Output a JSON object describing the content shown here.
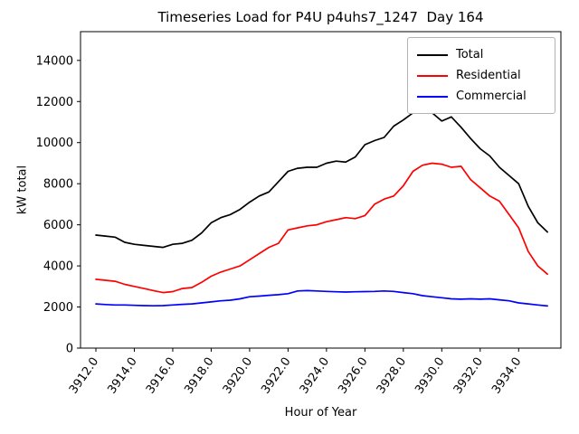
{
  "chart_data": {
    "type": "line",
    "title": "Timeseries Load for P4U p4uhs7_1247  Day 164",
    "xlabel": "Hour of Year",
    "ylabel": "kW total",
    "xlim": [
      3911.2,
      3936.2
    ],
    "ylim": [
      0,
      15400
    ],
    "grid": false,
    "legend_position": "upper right",
    "xtick_values": [
      3912,
      3914,
      3916,
      3918,
      3920,
      3922,
      3924,
      3926,
      3928,
      3930,
      3932,
      3934
    ],
    "xtick_labels": [
      "3912.0",
      "3914.0",
      "3916.0",
      "3918.0",
      "3920.0",
      "3922.0",
      "3924.0",
      "3926.0",
      "3928.0",
      "3930.0",
      "3932.0",
      "3934.0"
    ],
    "ytick_values": [
      0,
      2000,
      4000,
      6000,
      8000,
      10000,
      12000,
      14000
    ],
    "ytick_labels": [
      "0",
      "2000",
      "4000",
      "6000",
      "8000",
      "10000",
      "12000",
      "14000"
    ],
    "x": [
      3912,
      3912.5,
      3913,
      3913.5,
      3914,
      3914.5,
      3915,
      3915.5,
      3916,
      3916.5,
      3917,
      3917.5,
      3918,
      3918.5,
      3919,
      3919.5,
      3920,
      3920.5,
      3921,
      3921.5,
      3922,
      3922.5,
      3923,
      3923.5,
      3924,
      3924.5,
      3925,
      3925.5,
      3926,
      3926.5,
      3927,
      3927.5,
      3928,
      3928.5,
      3929,
      3929.5,
      3930,
      3930.5,
      3931,
      3931.5,
      3932,
      3932.5,
      3933,
      3933.5,
      3934,
      3934.5,
      3935,
      3935.5
    ],
    "series": [
      {
        "name": "Total",
        "color": "#000000",
        "values": [
          5500,
          5450,
          5400,
          5150,
          5050,
          5000,
          4950,
          4900,
          5050,
          5100,
          5250,
          5600,
          6100,
          6350,
          6500,
          6750,
          7100,
          7400,
          7600,
          8100,
          8600,
          8750,
          8800,
          8800,
          9000,
          9100,
          9050,
          9300,
          9900,
          10100,
          10250,
          10800,
          11100,
          11450,
          11500,
          11450,
          11050,
          11250,
          10750,
          10200,
          9700,
          9350,
          8800,
          8400,
          8000,
          6900,
          6100,
          5650
        ]
      },
      {
        "name": "Residential",
        "color": "#ff0000",
        "values": [
          3350,
          3300,
          3250,
          3100,
          3000,
          2900,
          2800,
          2700,
          2750,
          2900,
          2950,
          3200,
          3500,
          3700,
          3850,
          4000,
          4300,
          4600,
          4900,
          5100,
          5750,
          5850,
          5950,
          6000,
          6150,
          6250,
          6350,
          6300,
          6450,
          7000,
          7250,
          7400,
          7900,
          8600,
          8900,
          9000,
          8950,
          8800,
          8850,
          8200,
          7800,
          7400,
          7150,
          6500,
          5850,
          4700,
          4000,
          3600
        ]
      },
      {
        "name": "Commercial",
        "color": "#0000ff",
        "values": [
          2150,
          2120,
          2100,
          2100,
          2080,
          2070,
          2060,
          2070,
          2100,
          2130,
          2150,
          2200,
          2250,
          2300,
          2330,
          2400,
          2500,
          2530,
          2570,
          2600,
          2650,
          2780,
          2800,
          2780,
          2760,
          2740,
          2730,
          2740,
          2750,
          2760,
          2780,
          2760,
          2700,
          2650,
          2550,
          2500,
          2450,
          2400,
          2380,
          2400,
          2380,
          2400,
          2350,
          2300,
          2200,
          2150,
          2100,
          2050
        ]
      }
    ]
  }
}
